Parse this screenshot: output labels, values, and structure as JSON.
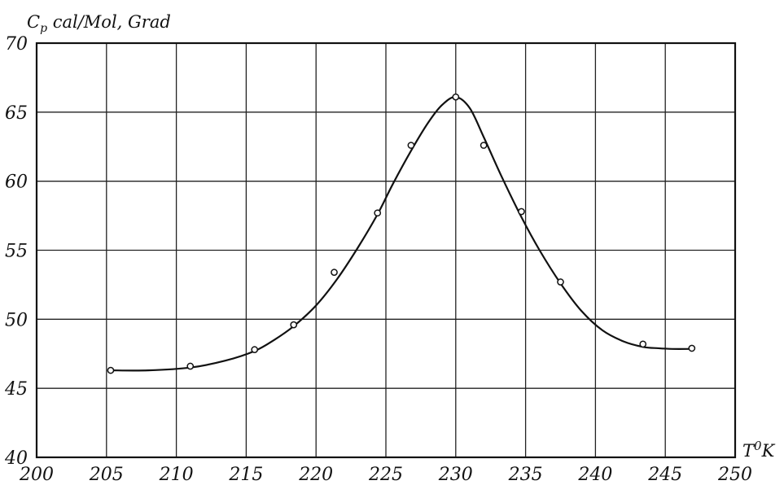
{
  "chart_data": {
    "type": "line",
    "title": "",
    "ylabel_main": "C",
    "ylabel_sub": "p",
    "ylabel_rest": " cal/Mol, Grad",
    "xlabel_main": "T",
    "xlabel_sup": "0",
    "xlabel_rest": "K",
    "xlim": [
      200,
      250
    ],
    "ylim": [
      40,
      70
    ],
    "xticks": [
      200,
      205,
      210,
      215,
      220,
      225,
      230,
      235,
      240,
      245,
      250
    ],
    "yticks": [
      40,
      45,
      50,
      55,
      60,
      65,
      70
    ],
    "grid": true,
    "legend": "none",
    "series": [
      {
        "style": "markers",
        "x": [
          205.3,
          211.0,
          215.6,
          218.4,
          221.3,
          224.4,
          226.8,
          230.0,
          232.0,
          234.7,
          237.5,
          243.4,
          246.9
        ],
        "y": [
          46.3,
          46.6,
          47.8,
          49.6,
          53.4,
          57.7,
          62.6,
          66.1,
          62.6,
          57.8,
          52.7,
          48.2,
          47.9
        ]
      },
      {
        "style": "curve",
        "x": [
          205.3,
          208,
          211,
          213.5,
          215.6,
          217,
          218.4,
          220,
          221.5,
          223,
          224.4,
          225.5,
          226.8,
          228,
          229,
          230,
          231,
          232,
          233.3,
          234.7,
          236,
          237.5,
          239,
          240.5,
          242,
          243.4,
          244.5,
          245.5,
          246.9
        ],
        "y": [
          46.3,
          46.3,
          46.5,
          47.0,
          47.7,
          48.5,
          49.5,
          51.0,
          52.9,
          55.2,
          57.6,
          59.8,
          62.2,
          64.2,
          65.5,
          66.1,
          65.3,
          63.2,
          60.3,
          57.4,
          55.0,
          52.6,
          50.6,
          49.2,
          48.4,
          48.0,
          47.9,
          47.85,
          47.85
        ]
      }
    ]
  }
}
